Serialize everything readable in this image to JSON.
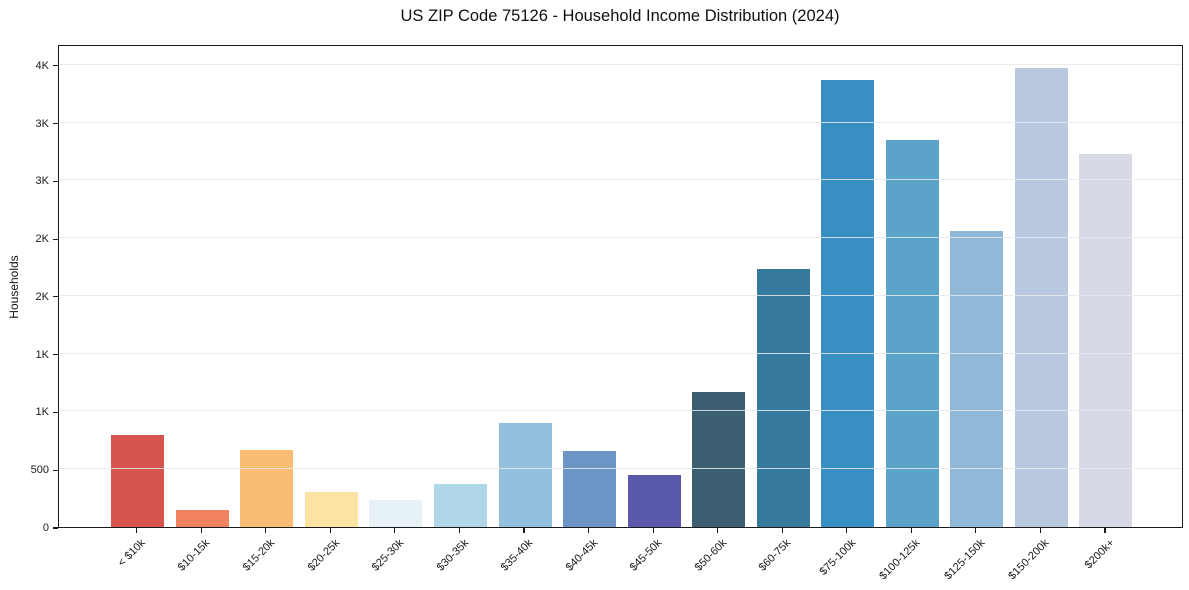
{
  "chart_data": {
    "type": "bar",
    "title": "US ZIP Code 75126 - Household Income Distribution (2024)",
    "xlabel": "",
    "ylabel": "Households",
    "categories": [
      "< $10k",
      "$10-15k",
      "$15-20k",
      "$20-25k",
      "$25-30k",
      "$30-35k",
      "$35-40k",
      "$40-45k",
      "$45-50k",
      "$50-60k",
      "$60-75k",
      "$75-100k",
      "$100-125k",
      "$125-150k",
      "$150-200k",
      "$200k+"
    ],
    "values": [
      800,
      150,
      670,
      300,
      235,
      375,
      900,
      655,
      450,
      1170,
      2230,
      3870,
      3350,
      2560,
      3970,
      3230
    ],
    "bar_colors": [
      "#d6544d",
      "#f08261",
      "#fbbc74",
      "#fde3a1",
      "#e7f2f7",
      "#b0d7e8",
      "#92c0dd",
      "#6c94c4",
      "#5a58a9",
      "#3b5e70",
      "#35799c",
      "#388fc4",
      "#5ba3c9",
      "#90b9d9",
      "#b7c8df",
      "#d7dae6"
    ],
    "ylim": [
      0,
      4180
    ],
    "yticks": {
      "values": [
        0,
        500,
        1000,
        1500,
        2000,
        2500,
        3000,
        3500,
        4000
      ],
      "labels": [
        "0",
        "500",
        "1K",
        "1K",
        "2K",
        "2K",
        "3K",
        "3K",
        "4K"
      ]
    },
    "grid": "horizontal",
    "legend": "none",
    "colors": {
      "background": "#ffffff",
      "spine": "#1a1a1a",
      "gridline": "#e7e7e9",
      "text": "#111111"
    }
  }
}
